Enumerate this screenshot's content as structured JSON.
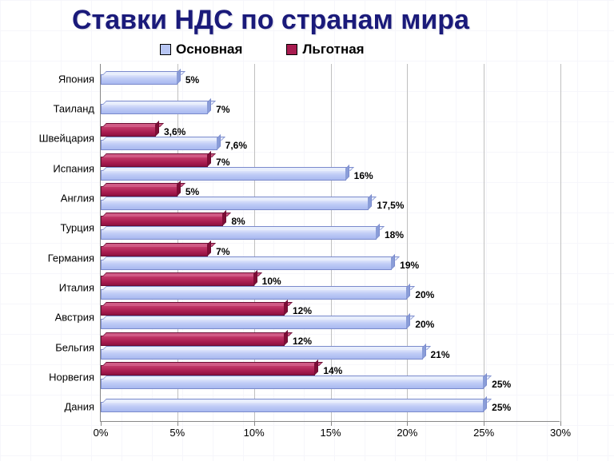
{
  "title": "Ставки НДС по странам мира",
  "legend": {
    "series1": "Основная",
    "series2": "Льготная"
  },
  "chart": {
    "type": "bar",
    "orientation": "horizontal",
    "xlim": [
      0,
      30
    ],
    "xtick_step": 5,
    "xtick_labels": [
      "0%",
      "5%",
      "10%",
      "15%",
      "20%",
      "25%",
      "30%"
    ],
    "colors": {
      "main_fill": "#b8c6f3",
      "main_border": "#7a8acc",
      "reduced_fill": "#a81c50",
      "reduced_border": "#6a0d33",
      "grid": "#c0c0c0",
      "background": "#ffffff",
      "title": "#1a1a7a"
    },
    "font": {
      "title_size": 34,
      "legend_size": 17,
      "label_size": 13,
      "datalabel_size": 12
    },
    "countries": [
      {
        "name": "Япония",
        "main": 5,
        "main_label": "5%",
        "reduced": null,
        "reduced_label": ""
      },
      {
        "name": "Таиланд",
        "main": 7,
        "main_label": "7%",
        "reduced": null,
        "reduced_label": ""
      },
      {
        "name": "Швейцария",
        "main": 7.6,
        "main_label": "7,6%",
        "reduced": 3.6,
        "reduced_label": "3,6%"
      },
      {
        "name": "Испания",
        "main": 16,
        "main_label": "16%",
        "reduced": 7,
        "reduced_label": "7%"
      },
      {
        "name": "Англия",
        "main": 17.5,
        "main_label": "17,5%",
        "reduced": 5,
        "reduced_label": "5%"
      },
      {
        "name": "Турция",
        "main": 18,
        "main_label": "18%",
        "reduced": 8,
        "reduced_label": "8%"
      },
      {
        "name": "Германия",
        "main": 19,
        "main_label": "19%",
        "reduced": 7,
        "reduced_label": "7%"
      },
      {
        "name": "Италия",
        "main": 20,
        "main_label": "20%",
        "reduced": 10,
        "reduced_label": "10%"
      },
      {
        "name": "Австрия",
        "main": 20,
        "main_label": "20%",
        "reduced": 12,
        "reduced_label": "12%"
      },
      {
        "name": "Бельгия",
        "main": 21,
        "main_label": "21%",
        "reduced": 12,
        "reduced_label": "12%"
      },
      {
        "name": "Норвегия",
        "main": 25,
        "main_label": "25%",
        "reduced": 14,
        "reduced_label": "14%"
      },
      {
        "name": "Дания",
        "main": 25,
        "main_label": "25%",
        "reduced": null,
        "reduced_label": ""
      }
    ]
  }
}
